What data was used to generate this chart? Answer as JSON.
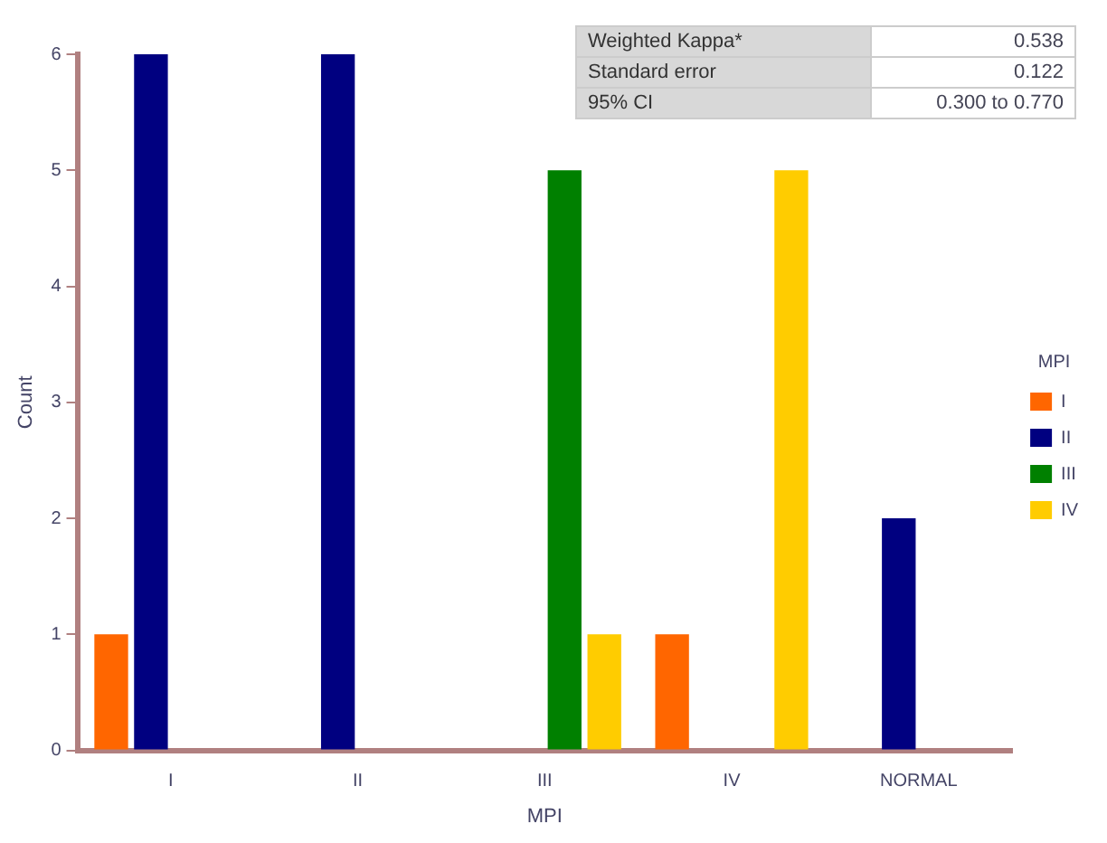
{
  "chart_data": {
    "type": "bar",
    "xlabel": "MPI",
    "ylabel": "Count",
    "legend_title": "MPI",
    "legend": "right",
    "grid": false,
    "categories": [
      "I",
      "II",
      "III",
      "IV",
      "NORMAL"
    ],
    "series": [
      {
        "name": "I",
        "color": "#ff6600",
        "values": [
          1,
          null,
          null,
          1,
          null
        ]
      },
      {
        "name": "II",
        "color": "#000080",
        "values": [
          6,
          6,
          null,
          null,
          2
        ]
      },
      {
        "name": "III",
        "color": "#008000",
        "values": [
          null,
          null,
          5,
          null,
          null
        ]
      },
      {
        "name": "IV",
        "color": "#ffcc00",
        "values": [
          null,
          null,
          1,
          5,
          null
        ]
      }
    ],
    "ylim": [
      0,
      6
    ],
    "yticks": [
      0,
      1,
      2,
      3,
      4,
      5,
      6
    ],
    "annotations": [
      "Weighted Kappa*",
      "0.538",
      "Standard error",
      "0.122",
      "95% CI",
      "0.300 to 0.770"
    ]
  }
}
